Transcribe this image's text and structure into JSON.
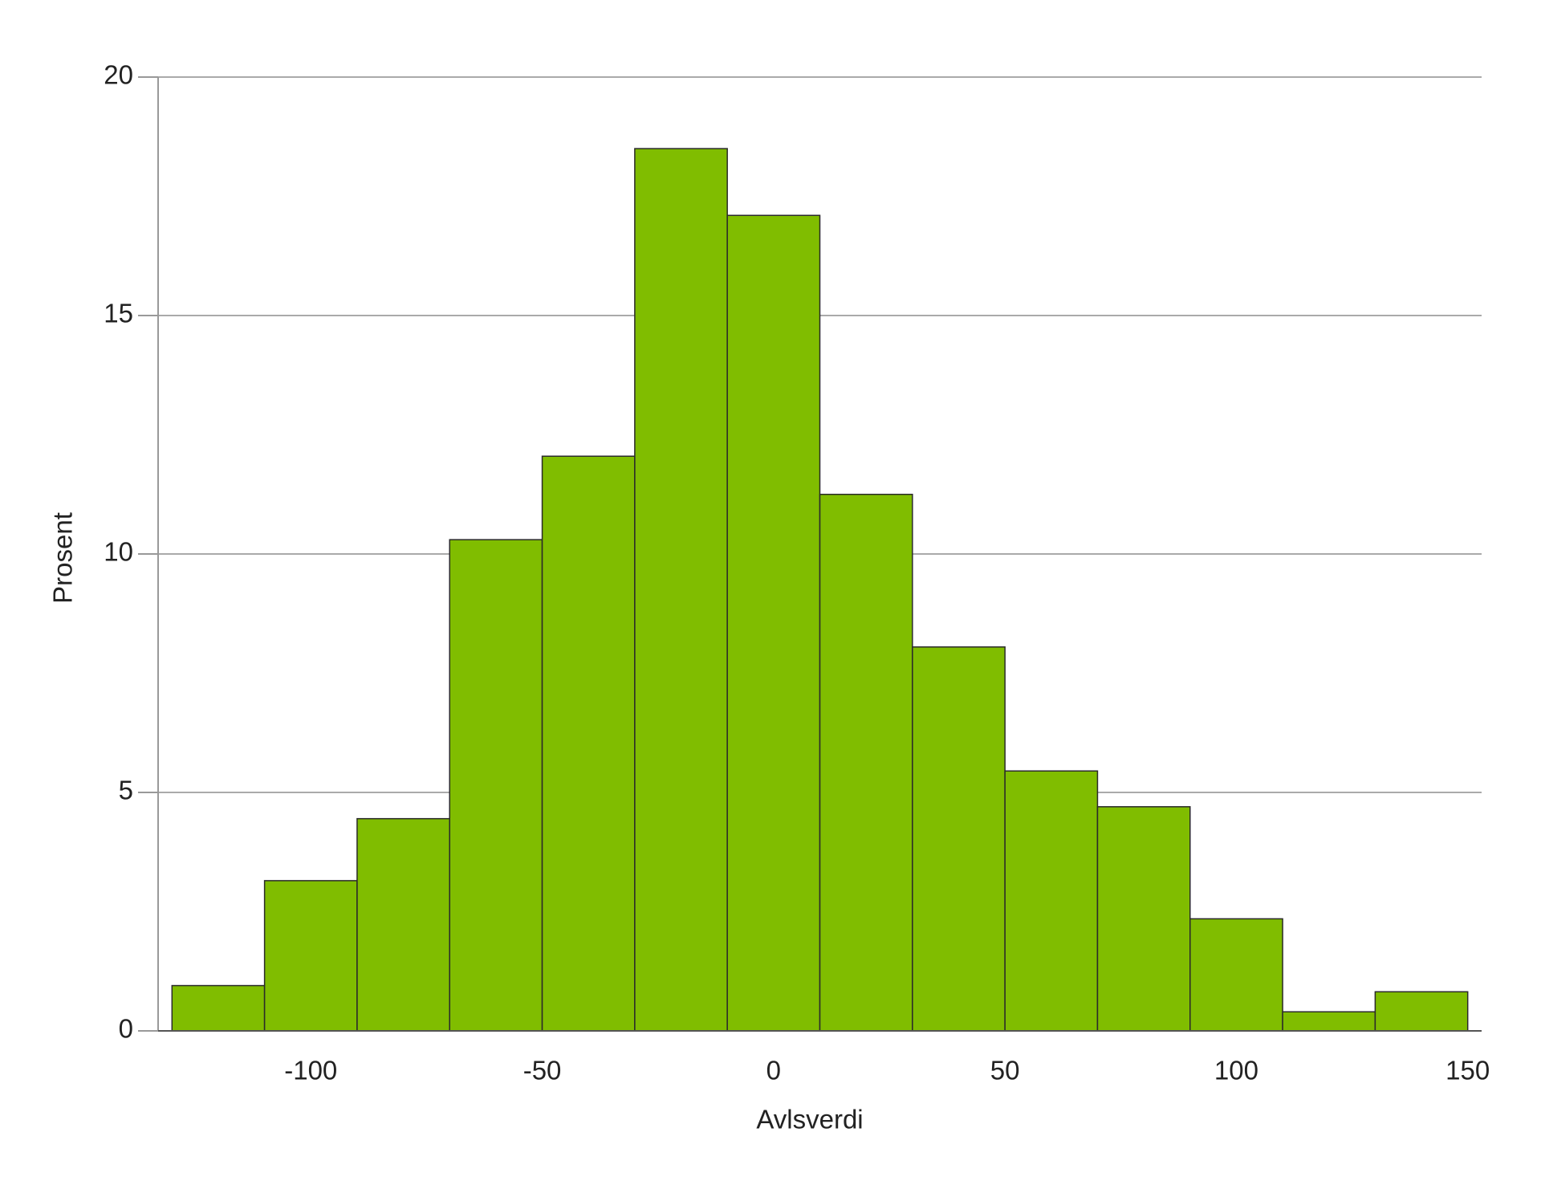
{
  "chart_data": {
    "type": "histogram",
    "x_label": "Avlsverdi",
    "y_label": "Prosent",
    "bins": [
      -130,
      -110,
      -90,
      -70,
      -50,
      -30,
      -10,
      10,
      30,
      50,
      70,
      90,
      110,
      130,
      150
    ],
    "values": [
      0.95,
      3.15,
      4.45,
      10.3,
      12.05,
      18.5,
      17.1,
      11.25,
      8.05,
      5.45,
      4.7,
      2.35,
      0.4,
      0.82
    ],
    "color": "#80bd00",
    "xlim": [
      -133,
      153
    ],
    "xticks": [
      -100,
      -50,
      0,
      50,
      100,
      150
    ],
    "ylim": [
      0,
      20
    ],
    "yticks": [
      0,
      5,
      10,
      15,
      20
    ],
    "grid": true
  }
}
